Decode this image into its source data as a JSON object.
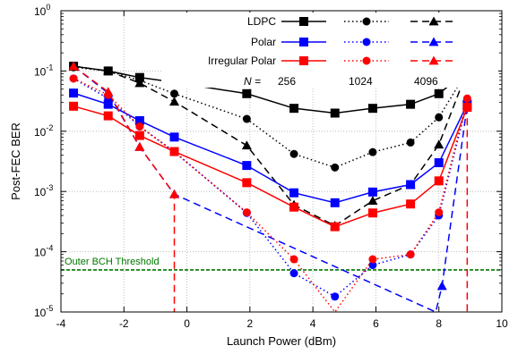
{
  "chart_data": {
    "type": "line",
    "title": "",
    "xlabel": "Launch Power (dBm)",
    "ylabel": "Post-FEC BER",
    "xlim": [
      -4,
      10
    ],
    "ylim": [
      1e-05,
      1
    ],
    "y_scale": "log",
    "grid": true,
    "x_ticks": [
      "-4",
      "-2",
      "0",
      "2",
      "4",
      "6",
      "8",
      "10"
    ],
    "y_ticks": [
      {
        "base": "10",
        "exp": "0"
      },
      {
        "base": "10",
        "exp": "-1"
      },
      {
        "base": "10",
        "exp": "-2"
      },
      {
        "base": "10",
        "exp": "-3"
      },
      {
        "base": "10",
        "exp": "-4"
      },
      {
        "base": "10",
        "exp": "-5"
      }
    ],
    "legend": {
      "placement": "top-right",
      "rows": [
        "LDPC",
        "Polar",
        "Irregular Polar"
      ],
      "n_label": "N =",
      "n_values": [
        "256",
        "1024",
        "4096"
      ]
    },
    "series": [
      {
        "code": "LDPC",
        "N": "256",
        "color": "#000000",
        "dash": "solid",
        "marker": "square",
        "x": [
          -3.6,
          -2.5,
          -1.5,
          -0.4,
          1.9,
          3.4,
          4.7,
          5.9,
          7.1,
          8.0,
          8.9
        ],
        "y": [
          0.12,
          0.1,
          0.078,
          0.065,
          0.042,
          0.024,
          0.02,
          0.024,
          0.028,
          0.042,
          0.1
        ]
      },
      {
        "code": "LDPC",
        "N": "1024",
        "color": "#000000",
        "dash": "dotted",
        "marker": "circle",
        "x": [
          -3.6,
          -2.5,
          -1.5,
          -0.4,
          1.9,
          3.4,
          4.7,
          5.9,
          7.1,
          8.0,
          8.9
        ],
        "y": [
          0.115,
          0.1,
          0.07,
          0.042,
          0.016,
          0.0042,
          0.0025,
          0.0045,
          0.0065,
          0.017,
          0.1
        ]
      },
      {
        "code": "LDPC",
        "N": "4096",
        "color": "#000000",
        "dash": "dashed",
        "marker": "triangle",
        "x": [
          -3.6,
          -2.5,
          -1.5,
          -0.4,
          1.9,
          3.4,
          4.7,
          5.9,
          7.1,
          8.0,
          8.9
        ],
        "y": [
          0.12,
          0.1,
          0.063,
          0.031,
          0.0058,
          0.0006,
          0.00027,
          0.0007,
          0.0013,
          0.006,
          0.1
        ]
      },
      {
        "code": "Polar",
        "N": "256",
        "color": "#0000ff",
        "dash": "solid",
        "marker": "square",
        "x": [
          -3.6,
          -2.5,
          -1.5,
          -0.4,
          1.9,
          3.4,
          4.7,
          5.9,
          7.1,
          8.0,
          8.9
        ],
        "y": [
          0.043,
          0.028,
          0.015,
          0.008,
          0.0027,
          0.00095,
          0.00065,
          0.00098,
          0.0013,
          0.003,
          0.028
        ]
      },
      {
        "code": "Polar",
        "N": "1024",
        "color": "#0000ff",
        "dash": "dotted",
        "marker": "circle",
        "x": [
          -3.6,
          -2.5,
          -1.5,
          -0.4,
          1.9,
          3.4,
          4.7,
          5.9,
          7.1,
          8.0,
          8.9
        ],
        "y": [
          0.075,
          0.035,
          0.012,
          0.0046,
          0.00044,
          4.4e-05,
          1.8e-05,
          6e-05,
          9e-05,
          0.0004,
          0.03
        ]
      },
      {
        "code": "Polar",
        "N": "4096",
        "color": "#0000ff",
        "dash": "dashed",
        "marker": "triangle",
        "x": [
          -3.6,
          -2.5,
          -1.5,
          -0.4,
          7.9,
          8.1,
          8.9
        ],
        "y": [
          0.12,
          0.043,
          0.0055,
          0.0009,
          1e-05,
          2.7e-05,
          0.027
        ]
      },
      {
        "code": "Irregular Polar",
        "N": "256",
        "color": "#ff0000",
        "dash": "solid",
        "marker": "square",
        "x": [
          -3.6,
          -2.5,
          -1.5,
          -0.4,
          1.9,
          3.4,
          4.7,
          5.9,
          7.1,
          8.0,
          8.9
        ],
        "y": [
          0.026,
          0.018,
          0.0085,
          0.0046,
          0.0014,
          0.00055,
          0.00026,
          0.00044,
          0.00062,
          0.0015,
          0.025
        ]
      },
      {
        "code": "Irregular Polar",
        "N": "1024",
        "color": "#ff0000",
        "dash": "dotted",
        "marker": "circle",
        "x": [
          -3.6,
          -2.5,
          -1.5,
          -0.4,
          1.9,
          3.4,
          4.7,
          5.9,
          7.1,
          8.0,
          8.9
        ],
        "y": [
          0.075,
          0.04,
          0.012,
          0.0045,
          0.00045,
          7.5e-05,
          1e-05,
          7.5e-05,
          9e-05,
          0.00045,
          0.035
        ]
      },
      {
        "code": "Irregular Polar",
        "N": "4096",
        "color": "#ff0000",
        "dash": "dashed",
        "marker": "triangle",
        "x": [
          -3.6,
          -2.5,
          -1.5,
          -0.4,
          -0.4
        ],
        "y": [
          0.12,
          0.045,
          0.0055,
          0.0009,
          1e-05
        ],
        "extra": {
          "x": [
            8.9,
            8.9
          ],
          "y": [
            0.04,
            1e-05
          ]
        }
      }
    ],
    "threshold": {
      "label": "Outer BCH Threshold",
      "y": 5e-05,
      "color": "#007700"
    }
  }
}
